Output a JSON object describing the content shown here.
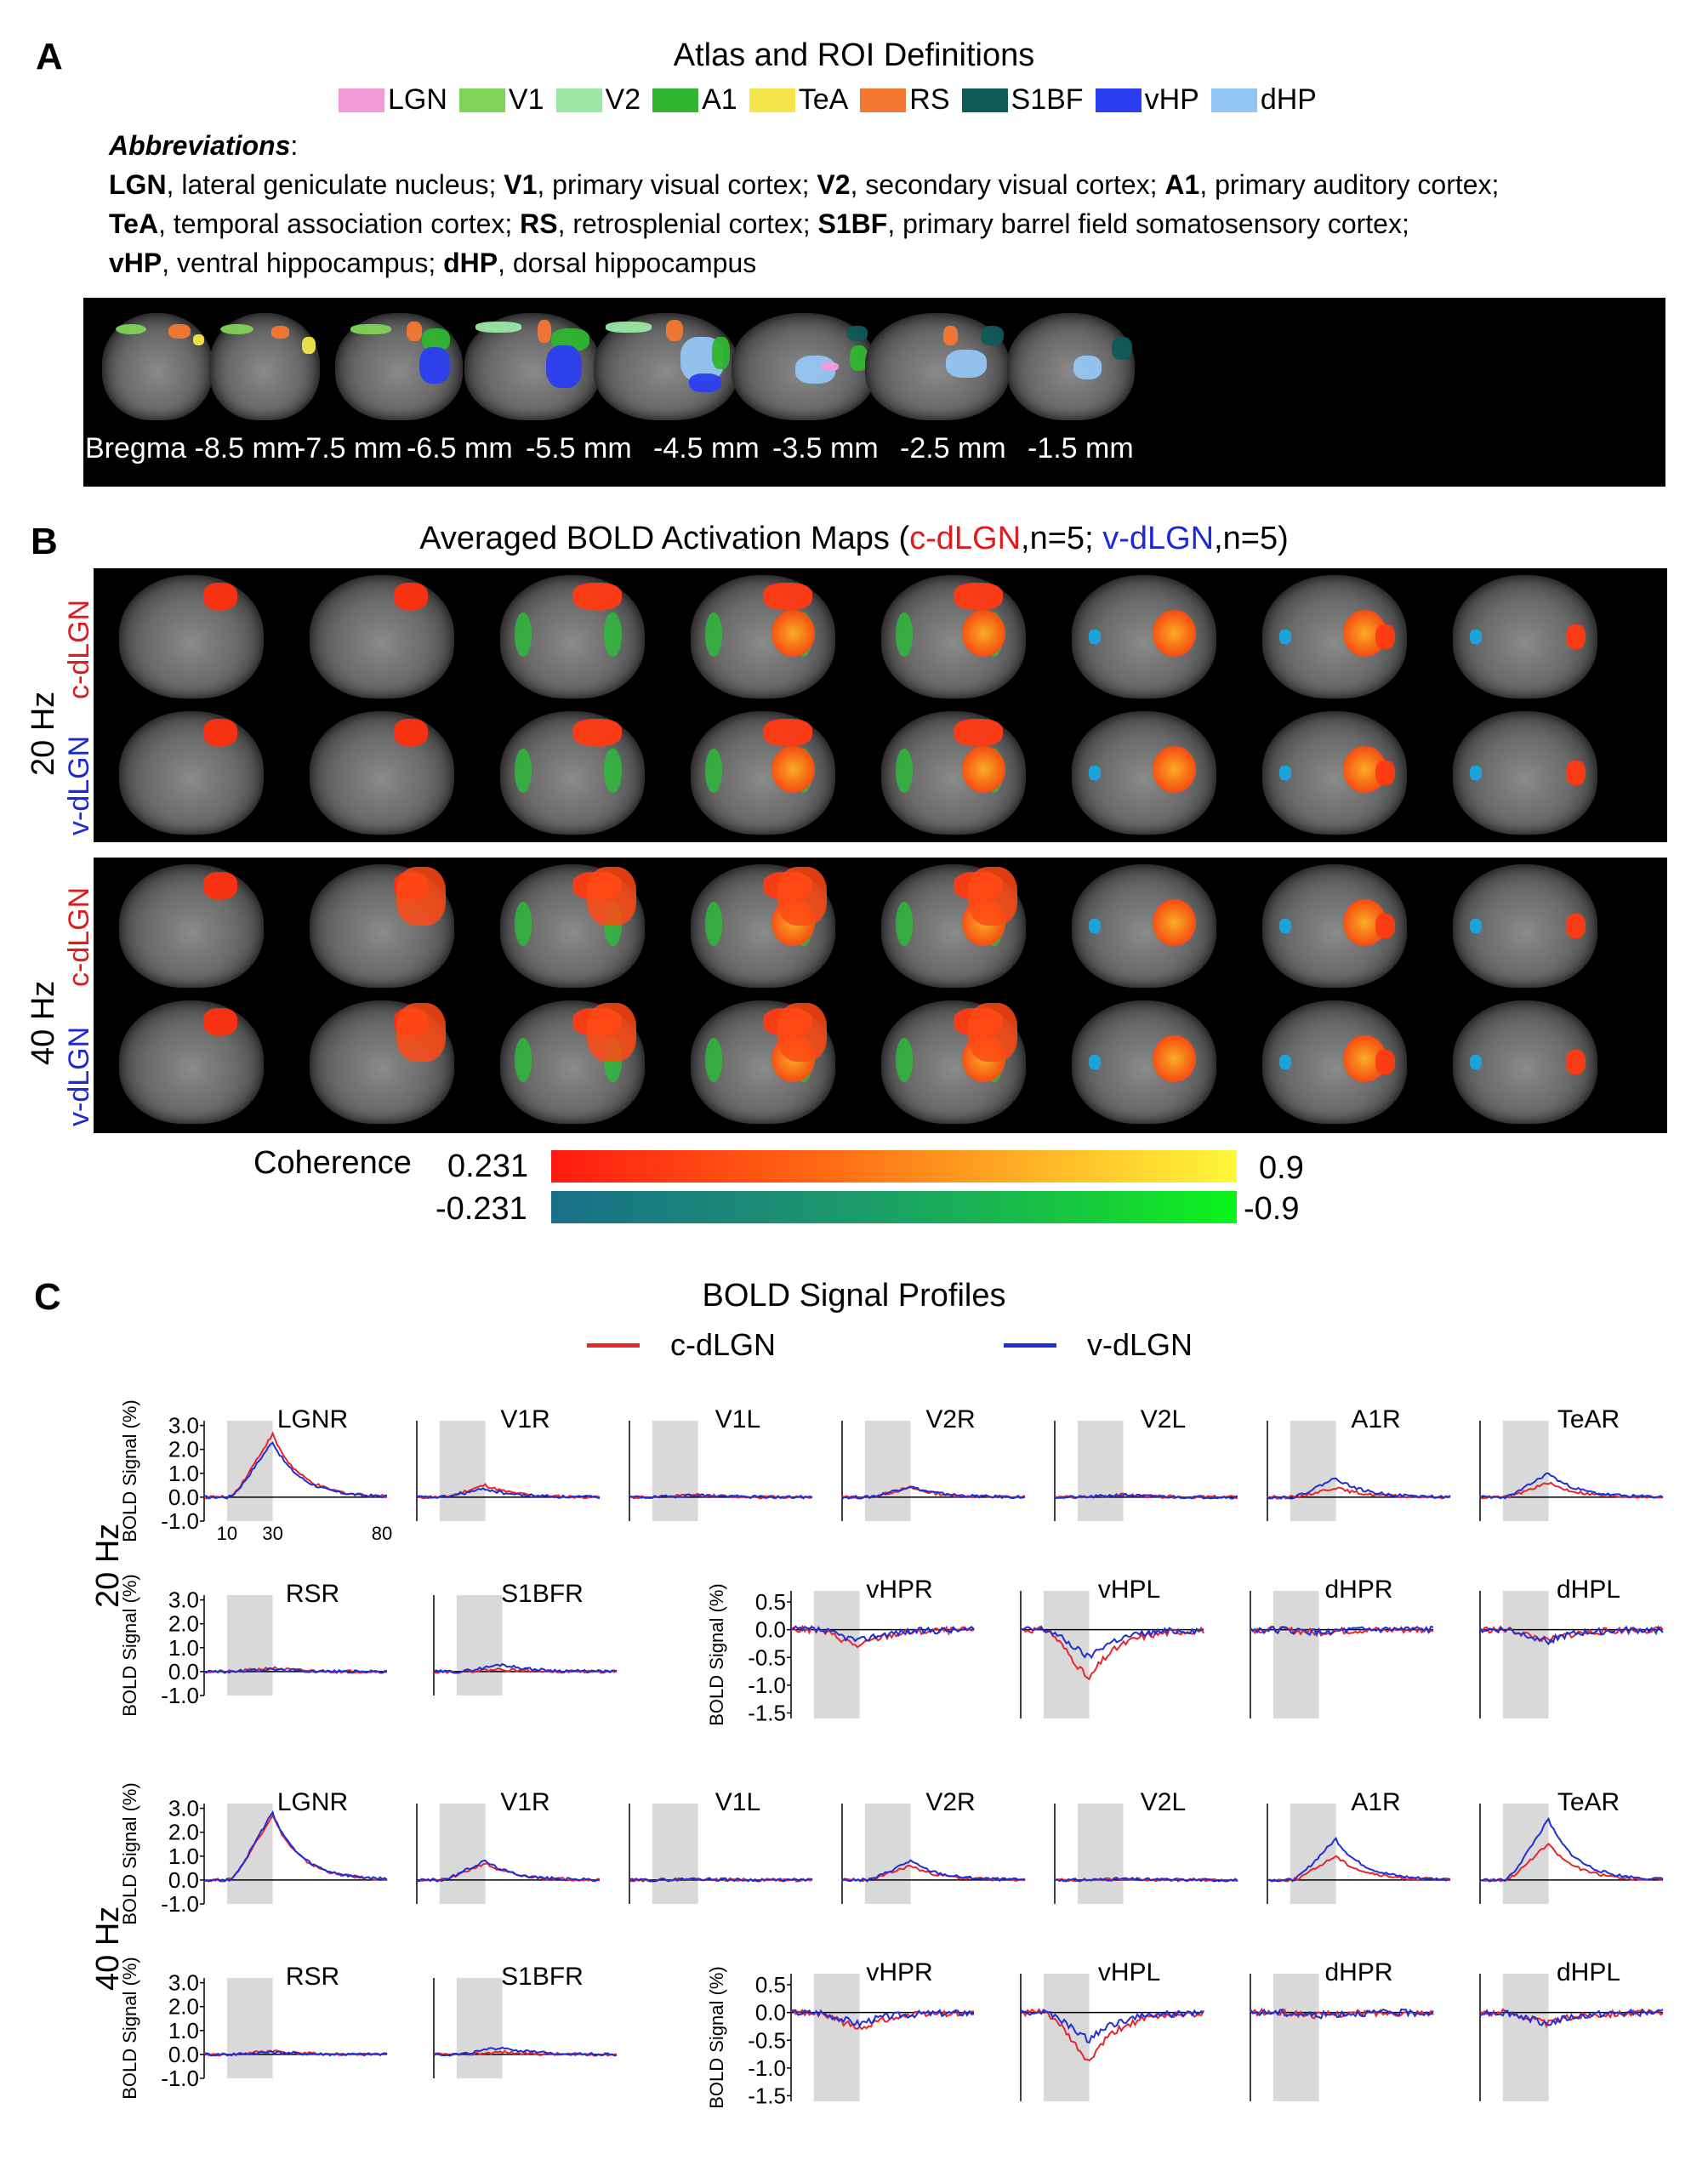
{
  "panel_a": {
    "letter": "A",
    "title": "Atlas and ROI Definitions",
    "legend": [
      {
        "label": "LGN",
        "color": "#f59ad9"
      },
      {
        "label": "V1",
        "color": "#7fd357"
      },
      {
        "label": "V2",
        "color": "#9de7a6"
      },
      {
        "label": "A1",
        "color": "#2fb52f"
      },
      {
        "label": "TeA",
        "color": "#f4e64a"
      },
      {
        "label": "RS",
        "color": "#f47732"
      },
      {
        "label": "S1BF",
        "color": "#0f5a57"
      },
      {
        "label": "vHP",
        "color": "#2a3ef0"
      },
      {
        "label": "dHP",
        "color": "#93c5f3"
      }
    ],
    "abbr_heading": "Abbreviations",
    "abbr_colon": ":",
    "abbr_lines": [
      [
        [
          "LGN",
          ", lateral geniculate nucleus; "
        ],
        [
          "V1",
          ", primary visual cortex; "
        ],
        [
          "V2",
          ", secondary visual cortex; "
        ],
        [
          "A1",
          ", primary auditory cortex;"
        ]
      ],
      [
        [
          "TeA",
          ", temporal association cortex; "
        ],
        [
          "RS",
          ", retrosplenial cortex; "
        ],
        [
          "S1BF",
          ", primary barrel field somatosensory cortex;"
        ]
      ],
      [
        [
          "vHP",
          ", ventral hippocampus; "
        ],
        [
          "dHP",
          ", dorsal hippocampus"
        ]
      ]
    ],
    "slice_labels": [
      "Bregma -8.5 mm",
      "-7.5 mm",
      "-6.5 mm",
      "-5.5 mm",
      "-4.5 mm",
      "-3.5 mm",
      "-2.5 mm",
      "-1.5 mm"
    ]
  },
  "panel_b": {
    "letter": "B",
    "title_prefix": "Averaged BOLD Activation Maps (",
    "title_c": "c-dLGN",
    "title_mid": ",n=5; ",
    "title_v": "v-dLGN",
    "title_suffix": ",n=5)",
    "freq_20": "20 Hz",
    "freq_40": "40 Hz",
    "row_c": "c-dLGN",
    "row_v": "v-dLGN",
    "colorbar_label": "Coherence",
    "pos_min": "0.231",
    "pos_max": "0.9",
    "neg_min": "-0.231",
    "neg_max": "-0.9"
  },
  "panel_c": {
    "letter": "C",
    "title": "BOLD Signal Profiles",
    "legend_c": "c-dLGN",
    "legend_v": "v-dLGN",
    "color_c": "#e8252a",
    "color_v": "#1f2fd6",
    "freq_20": "20 Hz",
    "freq_40": "40 Hz",
    "ylabel": "BOLD Signal (%)",
    "yticks_main": [
      "3.0",
      "2.0",
      "1.0",
      "0.0",
      "-1.0"
    ],
    "yticks_hp": [
      "0.5",
      "0.0",
      "-0.5",
      "-1.0",
      "-1.5"
    ],
    "xticks": [
      "10",
      "30",
      "80"
    ],
    "row1_titles": [
      "LGNR",
      "V1R",
      "V1L",
      "V2R",
      "V2L",
      "A1R",
      "TeAR"
    ],
    "row2_titles": [
      "RSR",
      "S1BFR",
      "vHPR",
      "vHPL",
      "dHPR",
      "dHPL"
    ]
  },
  "chart_data": [
    {
      "type": "line",
      "title": "LGNR",
      "group": "20 Hz",
      "xlim": [
        0,
        80
      ],
      "ylim": [
        -1,
        3
      ],
      "stim": [
        10,
        30
      ],
      "series": [
        {
          "name": "c-dLGN",
          "peak": 2.6
        },
        {
          "name": "v-dLGN",
          "peak": 2.3
        }
      ]
    },
    {
      "type": "line",
      "title": "V1R",
      "group": "20 Hz",
      "xlim": [
        0,
        80
      ],
      "ylim": [
        -1,
        3
      ],
      "stim": [
        10,
        30
      ],
      "series": [
        {
          "name": "c-dLGN",
          "peak": 0.5
        },
        {
          "name": "v-dLGN",
          "peak": 0.35
        }
      ]
    },
    {
      "type": "line",
      "title": "V1L",
      "group": "20 Hz",
      "xlim": [
        0,
        80
      ],
      "ylim": [
        -1,
        3
      ],
      "stim": [
        10,
        30
      ],
      "series": [
        {
          "name": "c-dLGN",
          "peak": 0.1
        },
        {
          "name": "v-dLGN",
          "peak": 0.1
        }
      ]
    },
    {
      "type": "line",
      "title": "V2R",
      "group": "20 Hz",
      "xlim": [
        0,
        80
      ],
      "ylim": [
        -1,
        3
      ],
      "stim": [
        10,
        30
      ],
      "series": [
        {
          "name": "c-dLGN",
          "peak": 0.4
        },
        {
          "name": "v-dLGN",
          "peak": 0.45
        }
      ]
    },
    {
      "type": "line",
      "title": "V2L",
      "group": "20 Hz",
      "xlim": [
        0,
        80
      ],
      "ylim": [
        -1,
        3
      ],
      "stim": [
        10,
        30
      ],
      "series": [
        {
          "name": "c-dLGN",
          "peak": 0.1
        },
        {
          "name": "v-dLGN",
          "peak": 0.1
        }
      ]
    },
    {
      "type": "line",
      "title": "A1R",
      "group": "20 Hz",
      "xlim": [
        0,
        80
      ],
      "ylim": [
        -1,
        3
      ],
      "stim": [
        10,
        30
      ],
      "series": [
        {
          "name": "c-dLGN",
          "peak": 0.4
        },
        {
          "name": "v-dLGN",
          "peak": 0.8
        }
      ]
    },
    {
      "type": "line",
      "title": "TeAR",
      "group": "20 Hz",
      "xlim": [
        0,
        80
      ],
      "ylim": [
        -1,
        3
      ],
      "stim": [
        10,
        30
      ],
      "series": [
        {
          "name": "c-dLGN",
          "peak": 0.6
        },
        {
          "name": "v-dLGN",
          "peak": 1.0
        }
      ]
    },
    {
      "type": "line",
      "title": "LGNR",
      "group": "40 Hz",
      "xlim": [
        0,
        80
      ],
      "ylim": [
        -1,
        3
      ],
      "stim": [
        10,
        30
      ],
      "series": [
        {
          "name": "c-dLGN",
          "peak": 2.7
        },
        {
          "name": "v-dLGN",
          "peak": 2.8
        }
      ]
    },
    {
      "type": "line",
      "title": "V1R",
      "group": "40 Hz",
      "xlim": [
        0,
        80
      ],
      "ylim": [
        -1,
        3
      ],
      "stim": [
        10,
        30
      ],
      "series": [
        {
          "name": "c-dLGN",
          "peak": 0.7
        },
        {
          "name": "v-dLGN",
          "peak": 0.8
        }
      ]
    },
    {
      "type": "line",
      "title": "V2R",
      "group": "40 Hz",
      "xlim": [
        0,
        80
      ],
      "ylim": [
        -1,
        3
      ],
      "stim": [
        10,
        30
      ],
      "series": [
        {
          "name": "c-dLGN",
          "peak": 0.6
        },
        {
          "name": "v-dLGN",
          "peak": 0.8
        }
      ]
    },
    {
      "type": "line",
      "title": "A1R",
      "group": "40 Hz",
      "xlim": [
        0,
        80
      ],
      "ylim": [
        -1,
        3
      ],
      "stim": [
        10,
        30
      ],
      "series": [
        {
          "name": "c-dLGN",
          "peak": 1.0
        },
        {
          "name": "v-dLGN",
          "peak": 1.7
        }
      ]
    },
    {
      "type": "line",
      "title": "TeAR",
      "group": "40 Hz",
      "xlim": [
        0,
        80
      ],
      "ylim": [
        -1,
        3
      ],
      "stim": [
        10,
        30
      ],
      "series": [
        {
          "name": "c-dLGN",
          "peak": 1.5
        },
        {
          "name": "v-dLGN",
          "peak": 2.5
        }
      ]
    }
  ]
}
